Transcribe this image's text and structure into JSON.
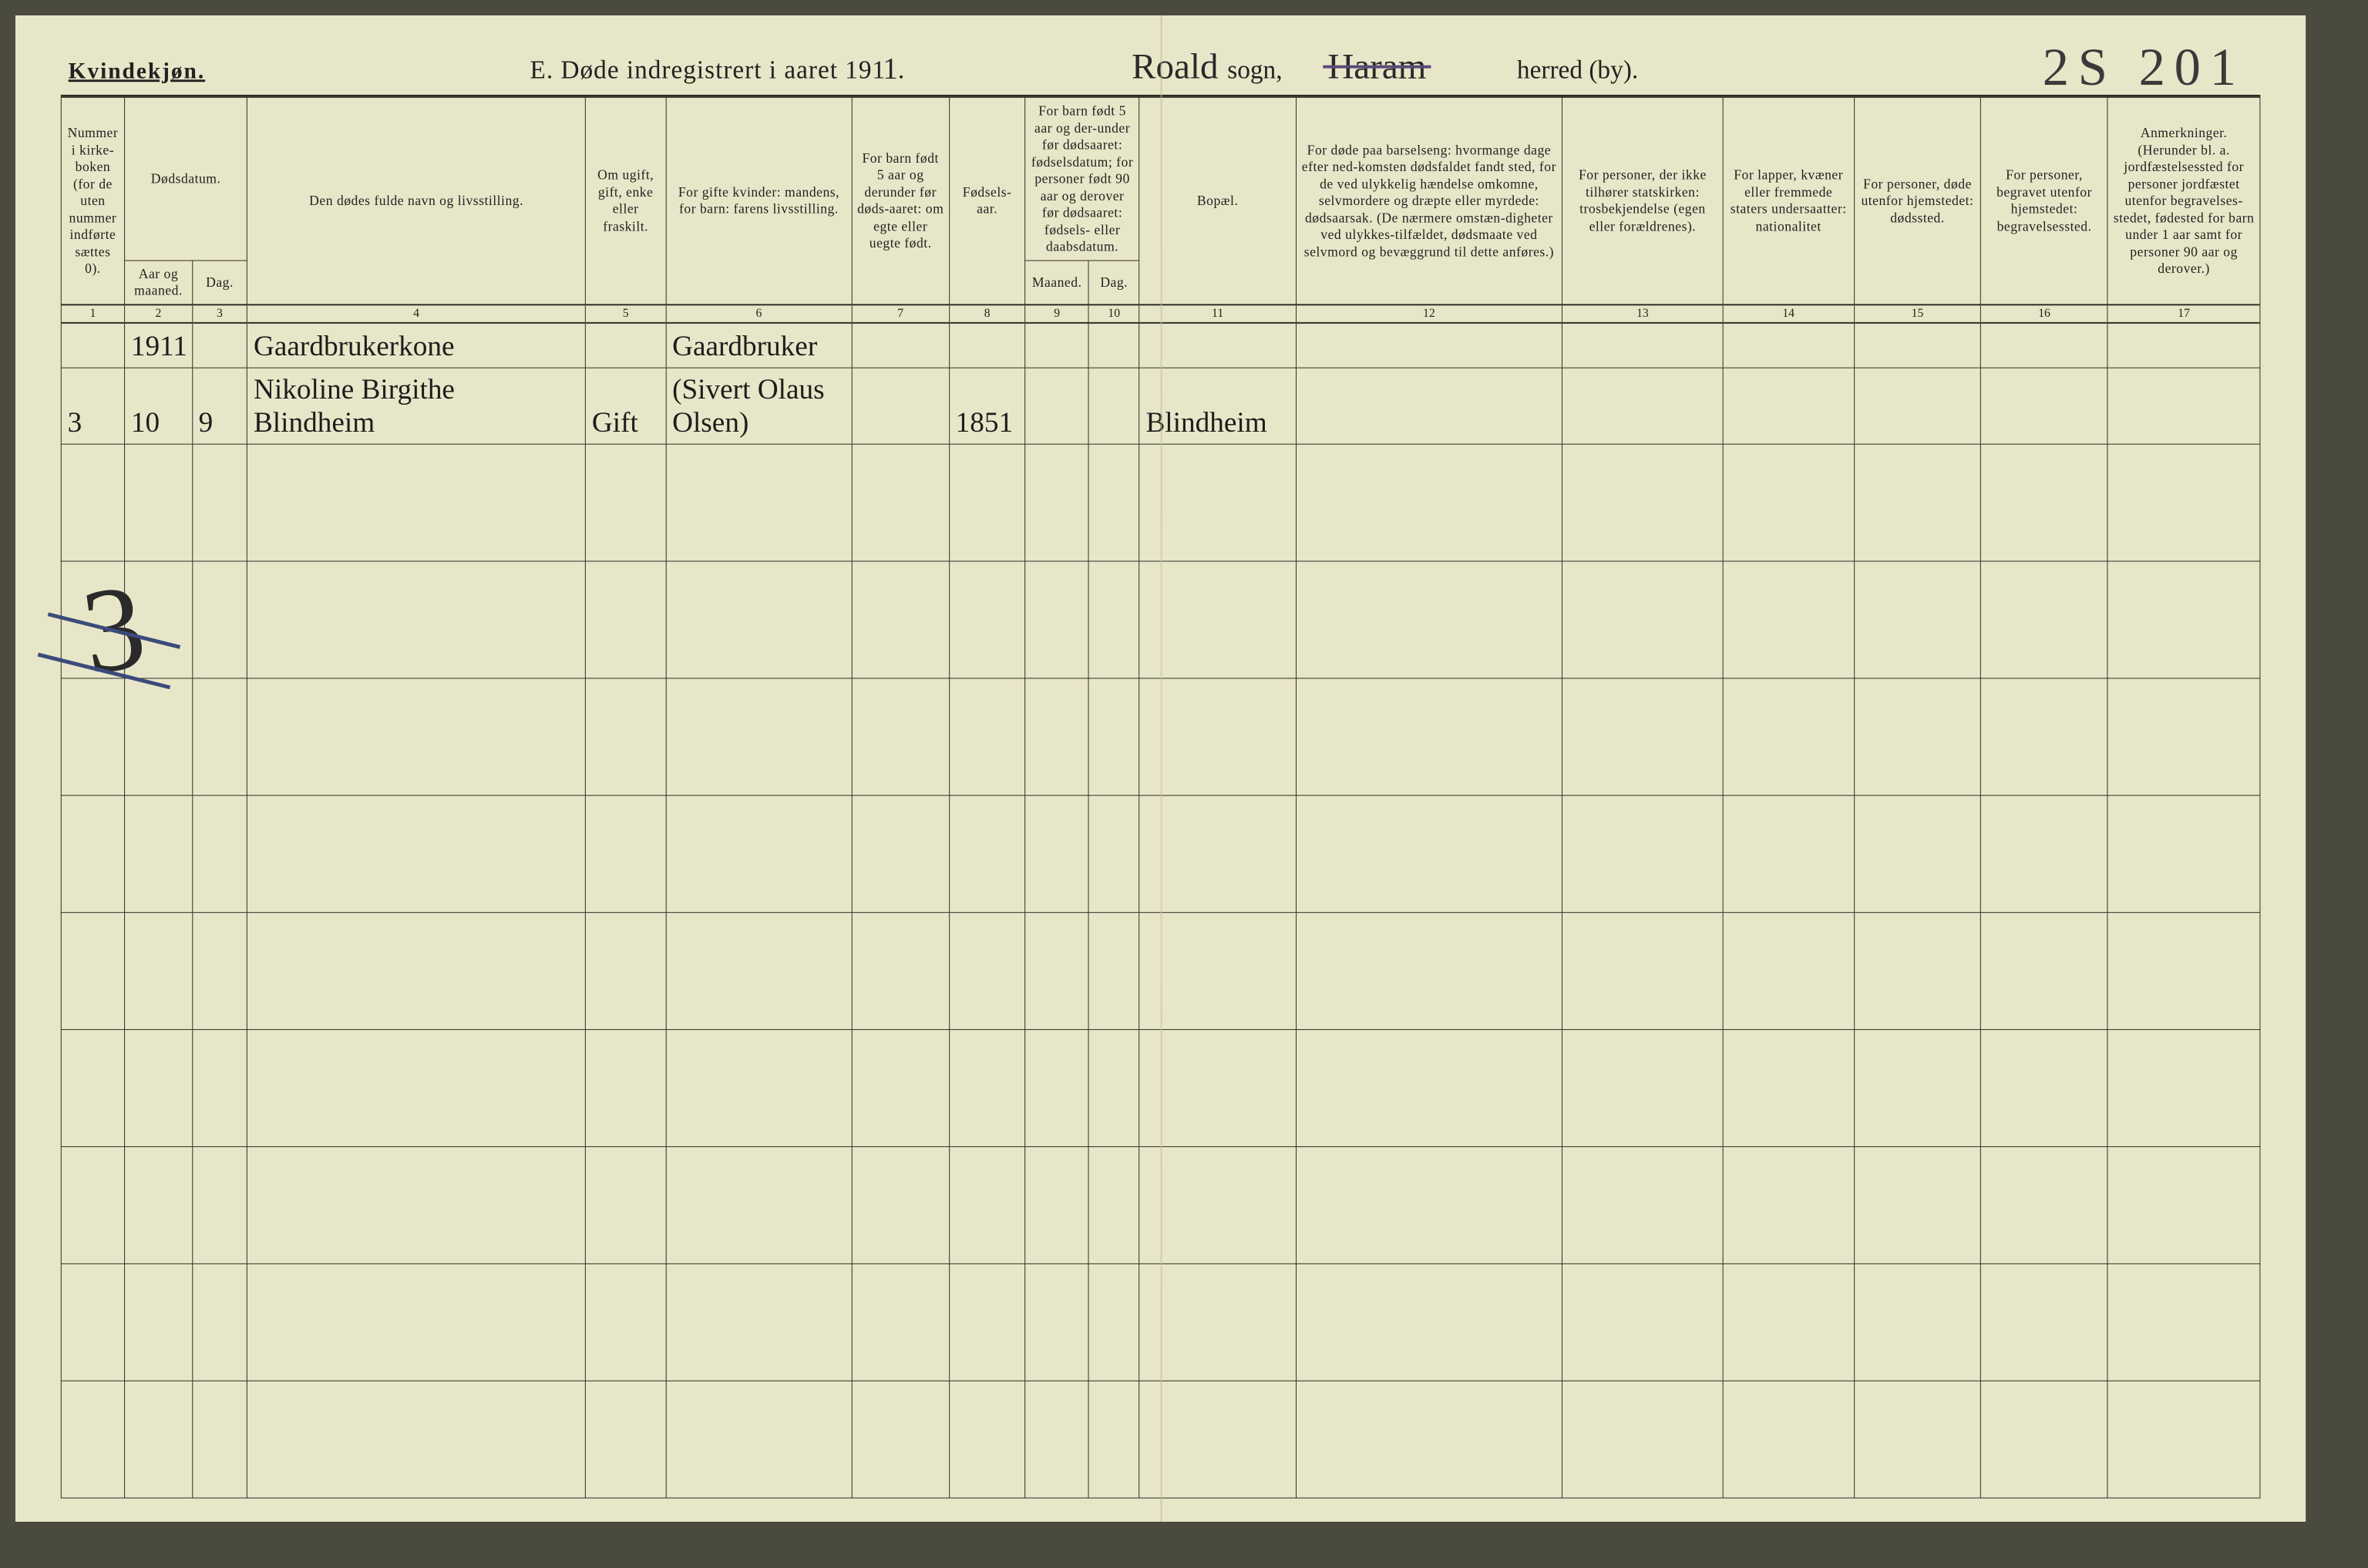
{
  "header": {
    "gender_label": "Kvindekjøn.",
    "title_prefix": "E.   Døde indregistrert i aaret 191",
    "year_suffix": "1",
    "title_dot": ".",
    "sogn_handwritten": "Roald",
    "sogn_printed": "sogn,",
    "herred_handwritten": "Haram",
    "herred_printed": "herred (by).",
    "page_number": "2S 201"
  },
  "columns": {
    "c1": "Nummer i kirke-boken (for de uten nummer indførte sættes 0).",
    "c2_top": "Dødsdatum.",
    "c2a": "Aar og maaned.",
    "c2b": "Dag.",
    "c4": "Den dødes fulde navn og livsstilling.",
    "c5": "Om ugift, gift, enke eller fraskilt.",
    "c6": "For gifte kvinder: mandens, for barn: farens livsstilling.",
    "c7": "For barn født 5 aar og derunder før døds-aaret: om egte eller uegte født.",
    "c8": "Fødsels-aar.",
    "c9_top": "For barn født 5 aar og der-under før dødsaaret: fødselsdatum; for personer født 90 aar og derover før dødsaaret: fødsels- eller daabsdatum.",
    "c9a": "Maaned.",
    "c9b": "Dag.",
    "c11": "Bopæl.",
    "c12": "For døde paa barselseng: hvormange dage efter ned-komsten dødsfaldet fandt sted, for de ved ulykkelig hændelse omkomne, selvmordere og dræpte eller myrdede: dødsaarsak. (De nærmere omstæn-digheter ved ulykkes-tilfældet, dødsmaate ved selvmord og bevæggrund til dette anføres.)",
    "c13": "For personer, der ikke tilhører statskirken: trosbekjendelse (egen eller forældrenes).",
    "c14": "For lapper, kvæner eller fremmede staters undersaatter: nationalitet",
    "c15": "For personer, døde utenfor hjemstedet: dødssted.",
    "c16": "For personer, begravet utenfor hjemstedet: begravelsessted.",
    "c17": "Anmerkninger. (Herunder bl. a. jordfæstelsessted for personer jordfæstet utenfor begravelses-stedet, fødested for barn under 1 aar samt for personer 90 aar og derover.)"
  },
  "colnums": [
    "1",
    "2",
    "3",
    "4",
    "5",
    "6",
    "7",
    "8",
    "9",
    "10",
    "11",
    "12",
    "13",
    "14",
    "15",
    "16",
    "17"
  ],
  "rows": [
    {
      "c1": "",
      "c2a": "1911",
      "c2b": "",
      "c4": "Gaardbrukerkone",
      "c5": "",
      "c6": "Gaardbruker",
      "c7": "",
      "c8": "",
      "c9a": "",
      "c9b": "",
      "c11": "",
      "c12": "",
      "c13": "",
      "c14": "",
      "c15": "",
      "c16": "",
      "c17": ""
    },
    {
      "c1": "3",
      "c2a": "10",
      "c2b": "9",
      "c4": "Nikoline Birgithe Blindheim",
      "c5": "Gift",
      "c6": "(Sivert Olaus Olsen)",
      "c7": "",
      "c8": "1851",
      "c9a": "",
      "c9b": "",
      "c11": "Blindheim",
      "c12": "",
      "c13": "",
      "c14": "",
      "c15": "",
      "c16": "",
      "c17": ""
    }
  ],
  "margin_scribble": "3",
  "colwidths_pct": [
    3.0,
    3.2,
    2.6,
    16.0,
    3.8,
    8.8,
    4.6,
    3.6,
    3.0,
    2.4,
    7.4,
    12.6,
    7.6,
    6.2,
    6.0,
    6.0,
    7.2
  ],
  "colors": {
    "paper": "#e8e6c8",
    "ink": "#2b2b24",
    "hand_ink": "#1d1d1d",
    "strike": "#5b4a7a",
    "fold": "#bdb98f"
  },
  "blank_row_count": 9
}
